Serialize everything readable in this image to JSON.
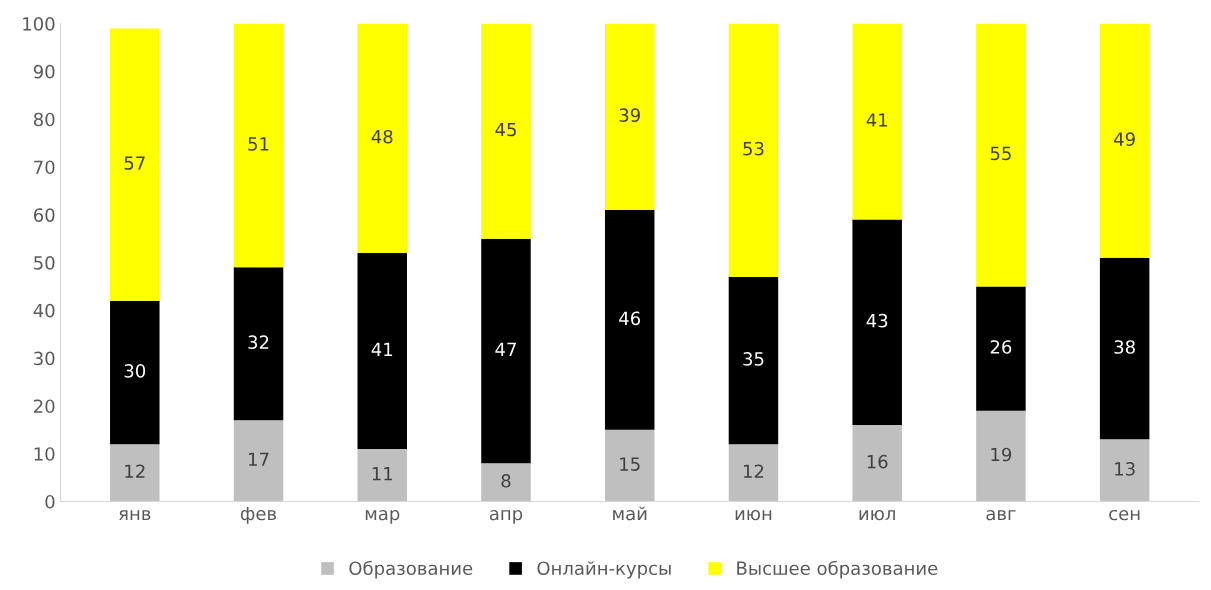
{
  "chart_data": {
    "type": "bar",
    "stacked": true,
    "categories": [
      "янв",
      "фев",
      "мар",
      "апр",
      "май",
      "июн",
      "июл",
      "авг",
      "сен"
    ],
    "series": [
      {
        "name": "Образование",
        "color": "#bfbfbf",
        "values": [
          12,
          17,
          11,
          8,
          15,
          12,
          16,
          19,
          13
        ]
      },
      {
        "name": "Онлайн-курсы",
        "color": "#000000",
        "values": [
          30,
          32,
          41,
          47,
          46,
          35,
          43,
          26,
          38
        ]
      },
      {
        "name": "Высшее образование",
        "color": "#ffff00",
        "values": [
          57,
          51,
          48,
          45,
          39,
          53,
          41,
          55,
          49
        ]
      }
    ],
    "ylim": [
      0,
      100
    ],
    "yticks": [
      0,
      10,
      20,
      30,
      40,
      50,
      60,
      70,
      80,
      90,
      100
    ],
    "grid": false,
    "legend": "bottom",
    "data_labels": true
  }
}
